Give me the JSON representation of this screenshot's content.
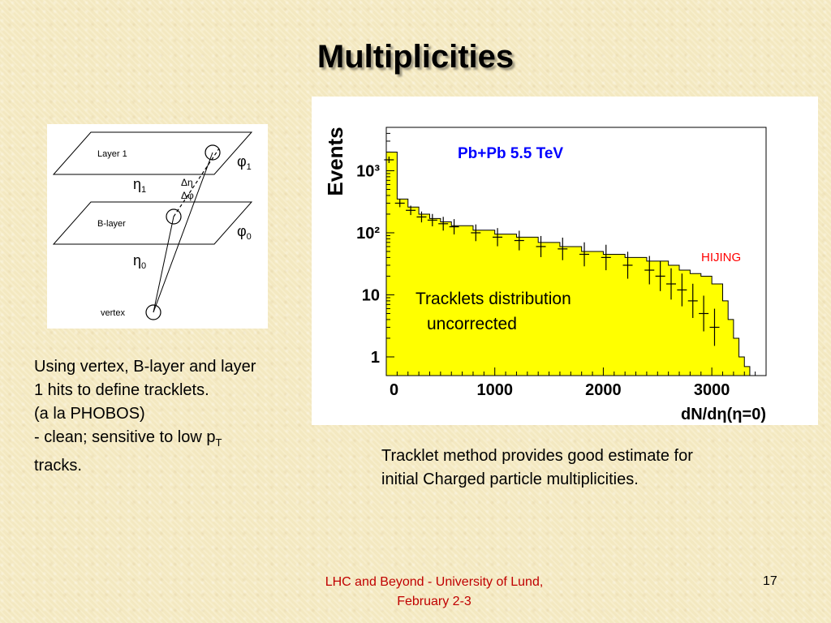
{
  "slide": {
    "title": "Multiplicities",
    "page_number": "17"
  },
  "diagram": {
    "layer1_label": "Layer 1",
    "blayer_label": "B-layer",
    "vertex_label": "vertex",
    "phi1": "φ",
    "phi1_sub": "1",
    "phi0": "φ",
    "phi0_sub": "0",
    "eta1": "η",
    "eta1_sub": "1",
    "eta0": "η",
    "eta0_sub": "0",
    "delta_eta": "Δη",
    "delta_phi": "Δφ"
  },
  "plot": {
    "ylabel": "Events",
    "xlabel": "dN/dη(η=0)",
    "legend_title": "Pb+Pb 5.5 TeV",
    "hijing_label": "HIJING",
    "annotation_line1": "Tracklets distribution",
    "annotation_line2": "uncorrected",
    "y_ticks": [
      "10³",
      "10²",
      "10",
      "1"
    ],
    "x_ticks": [
      "0",
      "1000",
      "2000",
      "3000"
    ]
  },
  "chart_data": {
    "type": "histogram",
    "title": "Pb+Pb 5.5 TeV",
    "xlabel": "dN/dη(η=0)",
    "ylabel": "Events",
    "y_scale": "log",
    "xlim": [
      0,
      3500
    ],
    "ylim": [
      0.5,
      5000
    ],
    "colors": {
      "hijing_fill": "#ffff00",
      "hijing_line": "#000000",
      "tracklets": "#000000",
      "legend_title": "#0000ff",
      "hijing_label": "#ff0000"
    },
    "series": [
      {
        "name": "HIJING",
        "x": [
          0,
          100,
          200,
          300,
          400,
          500,
          600,
          800,
          1000,
          1200,
          1400,
          1600,
          1800,
          2000,
          2200,
          2400,
          2600,
          2700,
          2800,
          2900,
          3000,
          3100,
          3150,
          3200,
          3250,
          3300
        ],
        "y": [
          2000,
          350,
          260,
          200,
          170,
          150,
          130,
          110,
          95,
          85,
          70,
          60,
          50,
          45,
          40,
          35,
          30,
          25,
          22,
          20,
          15,
          8,
          4,
          2,
          1,
          0.7
        ]
      },
      {
        "name": "Tracklets distribution uncorrected",
        "x": [
          0,
          100,
          200,
          300,
          400,
          500,
          600,
          800,
          1000,
          1200,
          1400,
          1600,
          1800,
          2000,
          2200,
          2400,
          2500,
          2600,
          2700,
          2800,
          2900,
          3000
        ],
        "y": [
          1500,
          300,
          230,
          180,
          160,
          140,
          125,
          100,
          85,
          75,
          60,
          55,
          45,
          40,
          30,
          25,
          20,
          15,
          12,
          8,
          5,
          3
        ]
      }
    ]
  },
  "text": {
    "left_line1": "Using vertex, B-layer and layer",
    "left_line2": "1 hits to define tracklets.",
    "left_line3": "(a la PHOBOS)",
    "left_line4": "- clean; sensitive to low p",
    "left_line4_sub": "T",
    "left_line5": "tracks.",
    "right_line1": "Tracklet method provides good estimate for",
    "right_line2": "initial Charged particle multiplicities."
  },
  "footer": {
    "line1": "LHC and Beyond - University of Lund,",
    "line2": "February 2-3"
  }
}
